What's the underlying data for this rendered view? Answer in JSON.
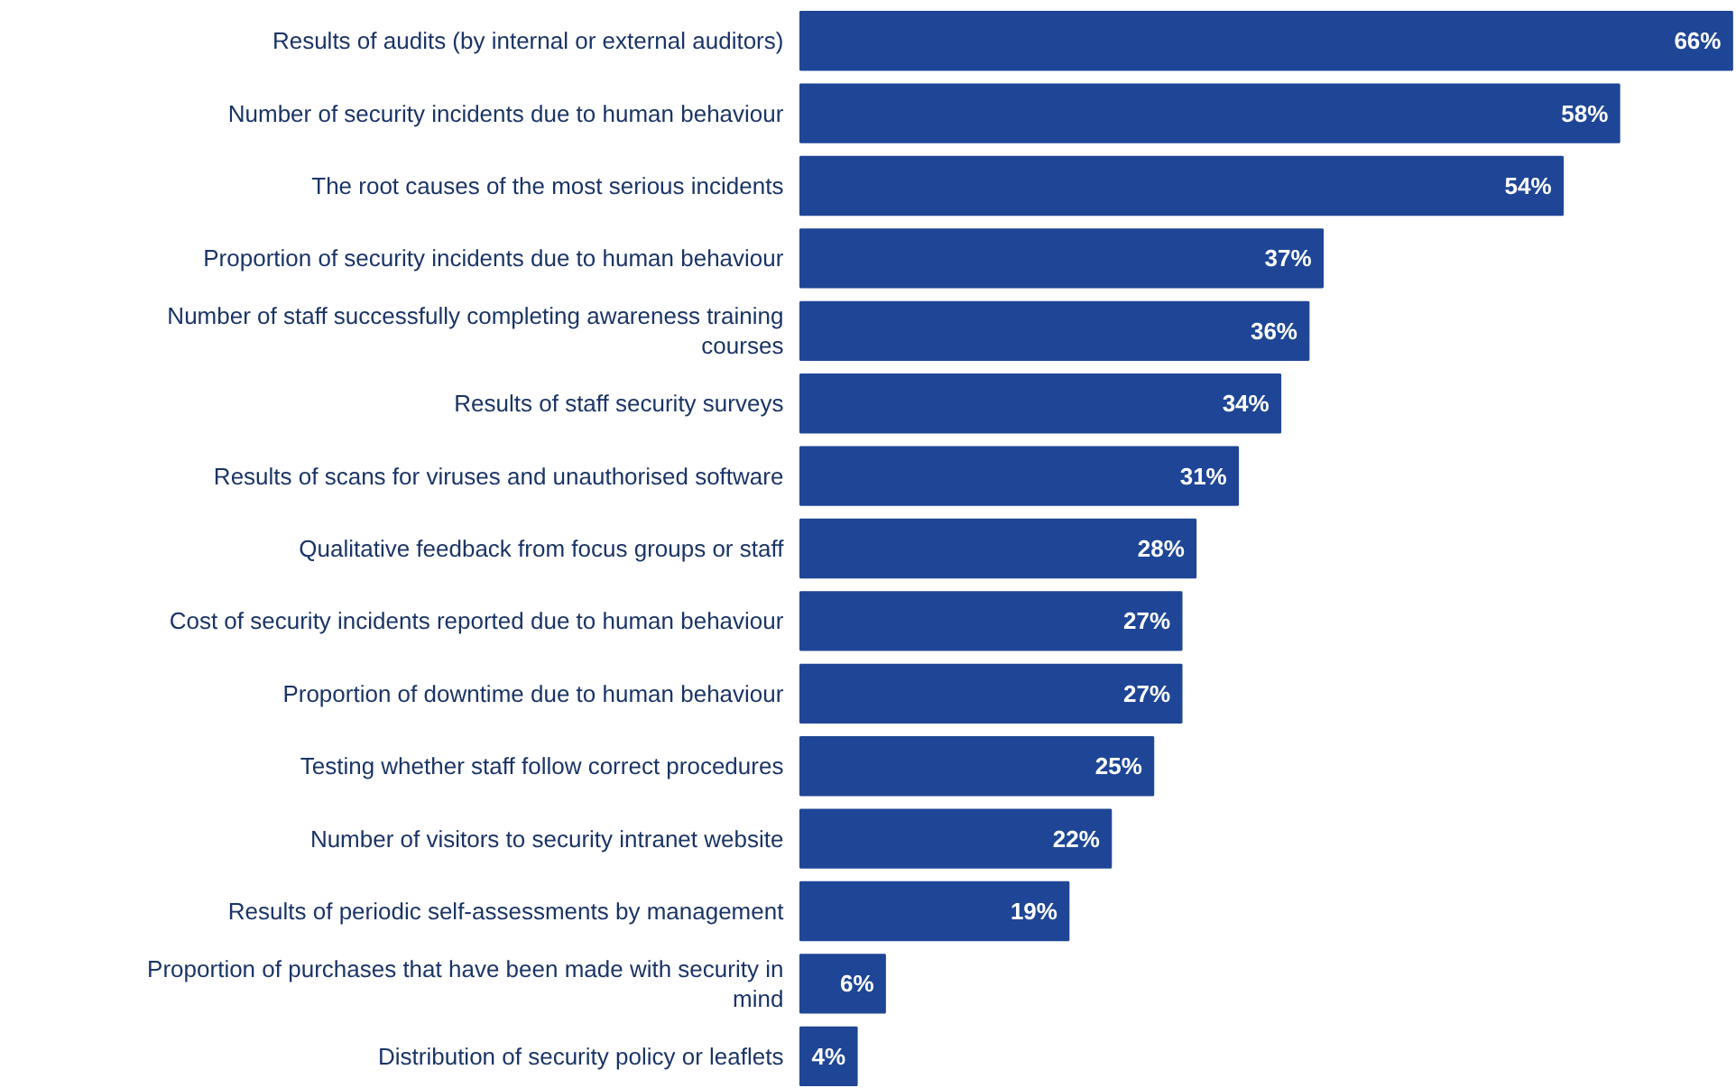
{
  "chart_data": {
    "type": "bar",
    "orientation": "horizontal",
    "color": "#1f4696",
    "categories": [
      "Results of audits (by internal or external auditors)",
      "Number of security incidents due to human behaviour",
      "The root causes of the most serious incidents",
      "Proportion of security incidents due to human behaviour",
      "Number of staff successfully completing awareness training courses",
      "Results of staff security surveys",
      "Results of scans for viruses and unauthorised software",
      "Qualitative feedback from focus groups or staff",
      "Cost of security incidents reported due to human behaviour",
      "Proportion of downtime due to human behaviour",
      "Testing whether staff follow correct procedures",
      "Number of visitors to security intranet website",
      "Results of periodic self-assessments by management",
      "Proportion of purchases that have been made with security in mind",
      "Distribution of security policy or leaflets"
    ],
    "values": [
      66,
      58,
      54,
      37,
      36,
      34,
      31,
      28,
      27,
      27,
      25,
      22,
      19,
      6,
      4
    ],
    "value_labels": [
      "66%",
      "58%",
      "54%",
      "37%",
      "36%",
      "34%",
      "31%",
      "28%",
      "27%",
      "27%",
      "25%",
      "22%",
      "19%",
      "6%",
      "4%"
    ]
  }
}
